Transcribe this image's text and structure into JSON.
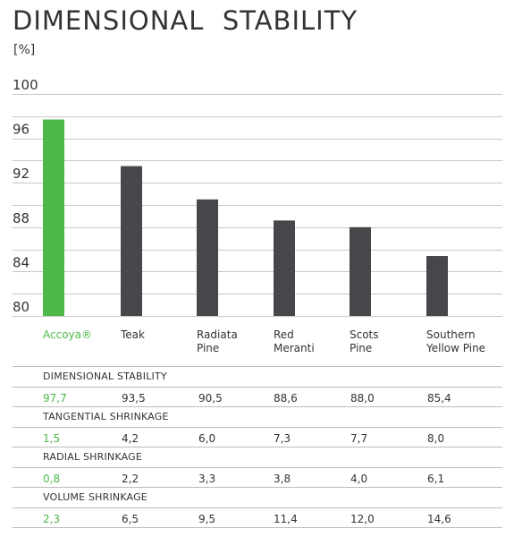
{
  "title": "DIMENSIONAL  STABILITY",
  "unit": "[%]",
  "colors": {
    "accent": "#4db848",
    "bar": "#47474b",
    "grid": "#c8c8c8",
    "text": "#333333"
  },
  "chart_data": {
    "type": "bar",
    "categories": [
      [
        "Accoya®"
      ],
      [
        "Teak"
      ],
      [
        "Radiata",
        "Pine"
      ],
      [
        "Red",
        "Meranti"
      ],
      [
        "Scots",
        "Pine"
      ],
      [
        "Southern",
        "Yellow Pine"
      ]
    ],
    "values": [
      97.7,
      93.5,
      90.5,
      88.6,
      88.0,
      85.4
    ],
    "highlight_index": 0,
    "ylim": [
      80,
      100
    ],
    "yticks": [
      "100",
      "96",
      "92",
      "88",
      "84",
      "80"
    ],
    "ytick_values": [
      100,
      96,
      92,
      88,
      84,
      80
    ],
    "grid": true
  },
  "table": {
    "sections": [
      {
        "label": "DIMENSIONAL STABILITY",
        "values": [
          "97,7",
          "93,5",
          "90,5",
          "88,6",
          "88,0",
          "85,4"
        ]
      },
      {
        "label": "TANGENTIAL SHRINKAGE",
        "values": [
          "1,5",
          "4,2",
          "6,0",
          "7,3",
          "7,7",
          "8,0"
        ]
      },
      {
        "label": "RADIAL SHRINKAGE",
        "values": [
          "0,8",
          "2,2",
          "3,3",
          "3,8",
          "4,0",
          "6,1"
        ]
      },
      {
        "label": "VOLUME SHRINKAGE",
        "values": [
          "2,3",
          "6,5",
          "9,5",
          "11,4",
          "12,0",
          "14,6"
        ]
      }
    ]
  }
}
